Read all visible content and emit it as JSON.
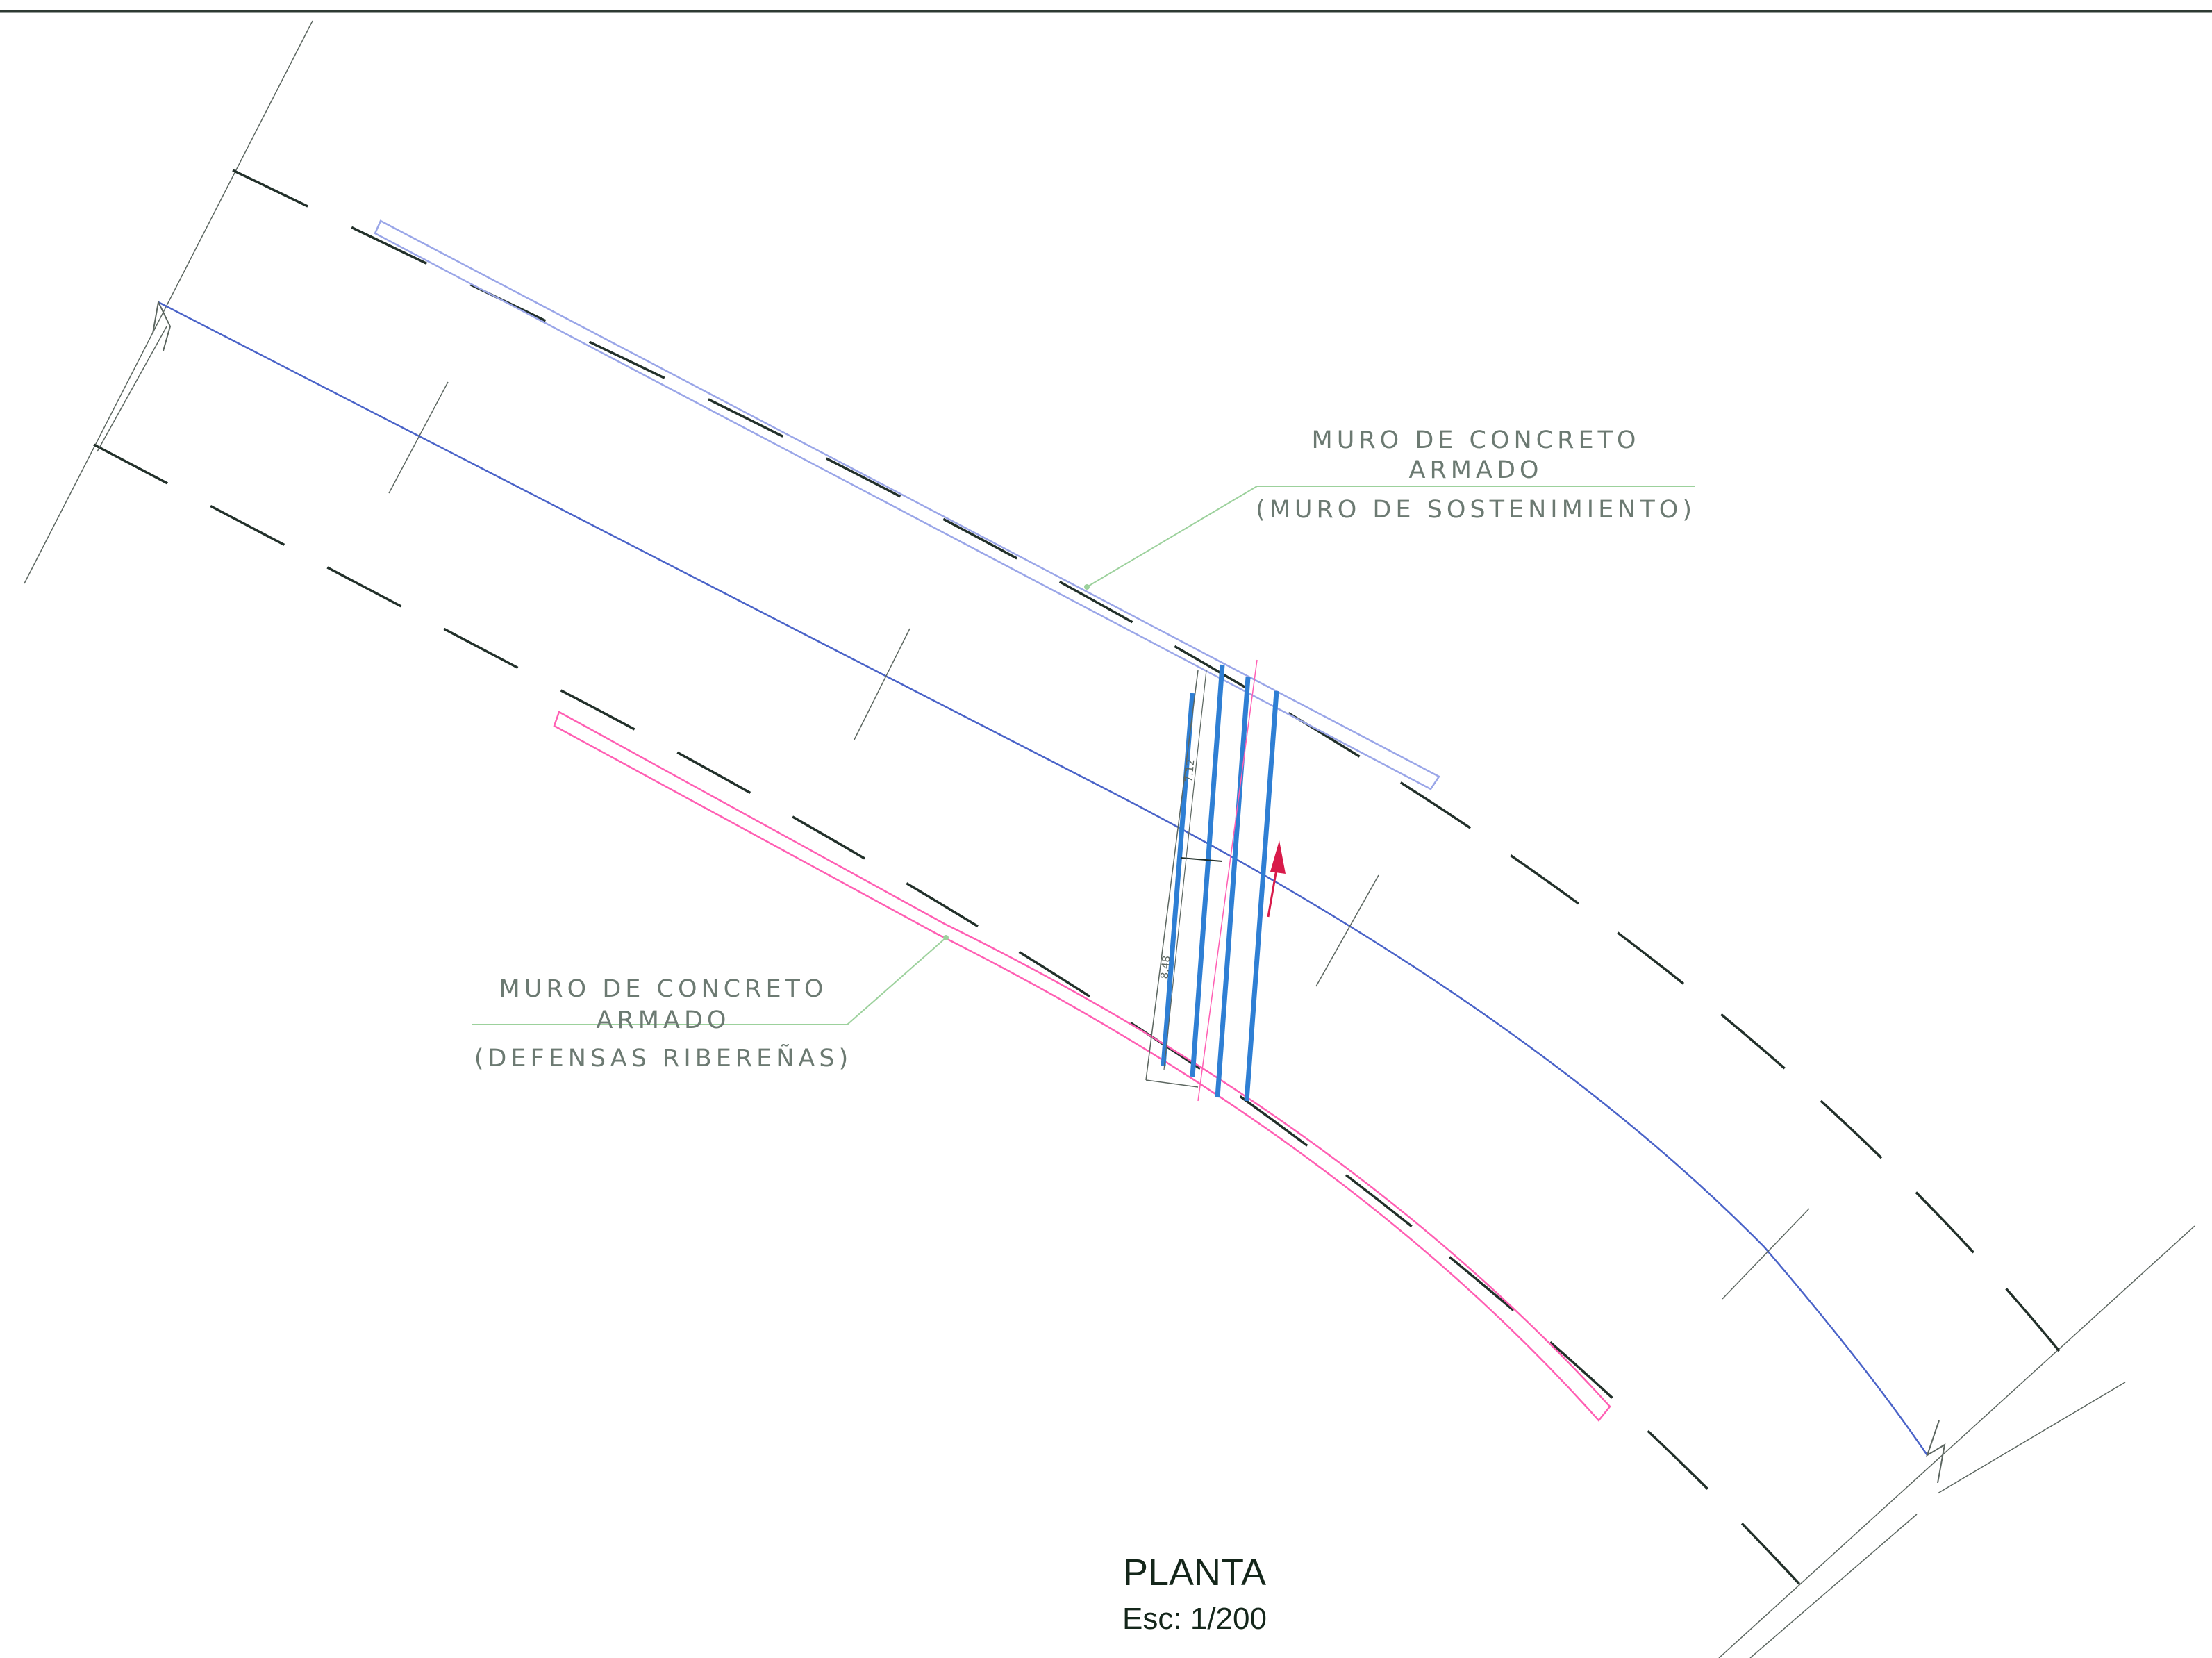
{
  "drawing": {
    "title": "PLANTA",
    "scale": "Esc: 1/200"
  },
  "labels": {
    "muro_sostenimiento": {
      "line1": "MURO DE CONCRETO",
      "line2": "ARMADO",
      "line3": "(MURO DE SOSTENIMIENTO)"
    },
    "muro_defensas": {
      "line1": "MURO DE CONCRETO",
      "line2": "ARMADO",
      "line3": "(DEFENSAS RIBEREÑAS)"
    }
  },
  "dimensions": {
    "upper": "7.12",
    "lower": "8.48"
  },
  "colors": {
    "background": "#ffffff",
    "border": "#2e3a33",
    "dashed_edge": "#22302a",
    "centerline": "#4a63c8",
    "bridge": "#2f7fd4",
    "wall_upper": "#9aa6e8",
    "wall_lower": "#ff5fb3",
    "leader": "#9cd19c",
    "label_text": "#6c7a72",
    "arrow": "#d81a4a",
    "title_text": "#14261a",
    "thin_line": "#5c6660"
  }
}
